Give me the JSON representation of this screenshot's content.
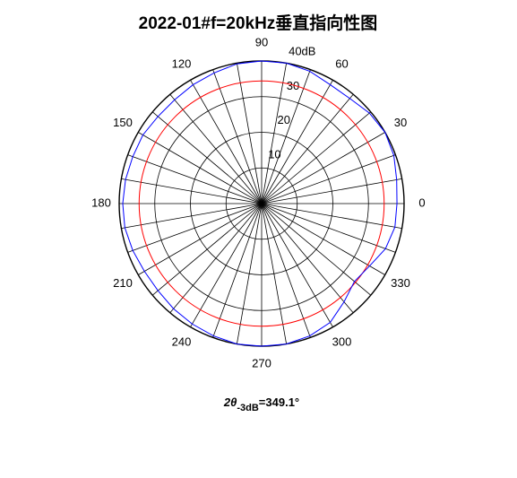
{
  "chart_data": {
    "type": "polar",
    "title": "2022-01#f=20kHz垂直指向性图",
    "rlim": [
      0,
      40
    ],
    "rticks": [
      {
        "value": 10,
        "label": "10"
      },
      {
        "value": 20,
        "label": "20"
      },
      {
        "value": 30,
        "label": "30"
      },
      {
        "value": 40,
        "label": "40dB"
      }
    ],
    "theta_ticks": [
      0,
      30,
      60,
      90,
      120,
      150,
      180,
      210,
      240,
      270,
      300,
      330
    ],
    "theta_grid_step": 10,
    "reference_circle": {
      "value": 34.4,
      "color": "#ff0000"
    },
    "series": [
      {
        "color": "#0000ff",
        "theta": [
          0,
          10,
          20,
          30,
          40,
          50,
          60,
          70,
          80,
          90,
          100,
          110,
          120,
          130,
          140,
          150,
          160,
          170,
          180,
          190,
          200,
          210,
          220,
          230,
          240,
          250,
          260,
          270,
          280,
          290,
          300,
          310,
          320,
          330,
          340,
          350,
          360
        ],
        "values": [
          38,
          38.5,
          39.5,
          40,
          39.5,
          38.5,
          38.5,
          39.5,
          40,
          40,
          39.8,
          39,
          38.5,
          38,
          38,
          38.5,
          38.5,
          38.8,
          39,
          39,
          38.5,
          38,
          38,
          38.5,
          39,
          39.5,
          40,
          40,
          40,
          39.5,
          38.5,
          36,
          34,
          35,
          37,
          38,
          38
        ]
      }
    ],
    "annotation": {
      "prefix": "2θ",
      "subscript": "-3dB",
      "suffix": "=349.1°"
    }
  }
}
